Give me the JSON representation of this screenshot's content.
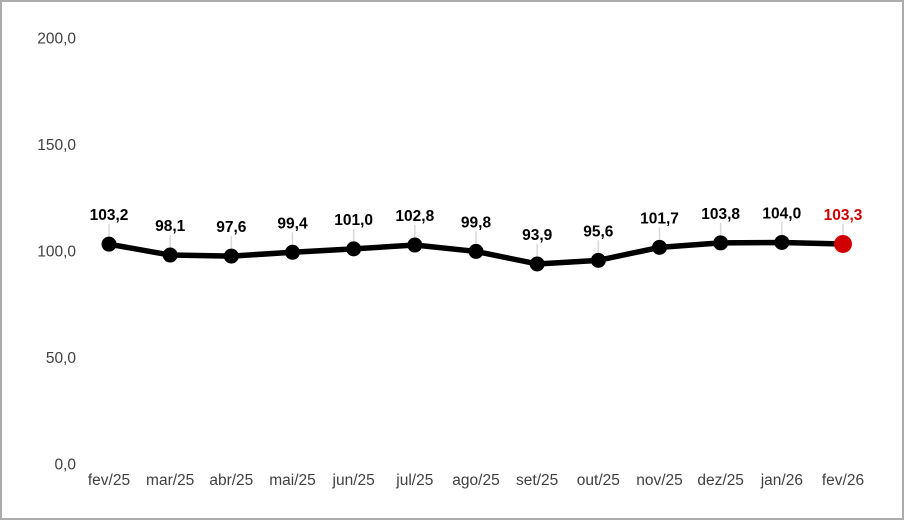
{
  "chart_data": {
    "type": "line",
    "title": "",
    "xlabel": "",
    "ylabel": "",
    "categories": [
      "fev/25",
      "mar/25",
      "abr/25",
      "mai/25",
      "jun/25",
      "jul/25",
      "ago/25",
      "set/25",
      "out/25",
      "nov/25",
      "dez/25",
      "jan/26",
      "fev/26"
    ],
    "series": [
      {
        "name": "index",
        "values": [
          103.2,
          98.1,
          97.6,
          99.4,
          101.0,
          102.8,
          99.8,
          93.9,
          95.6,
          101.7,
          103.8,
          104.0,
          103.3
        ],
        "value_labels": [
          "103,2",
          "98,1",
          "97,6",
          "99,4",
          "101,0",
          "102,8",
          "99,8",
          "93,9",
          "95,6",
          "101,7",
          "103,8",
          "104,0",
          "103,3"
        ]
      }
    ],
    "ylim": [
      0,
      200
    ],
    "y_ticks": [
      0,
      50,
      100,
      150,
      200
    ],
    "y_tick_labels": [
      "0,0",
      "50,0",
      "100,0",
      "150,0",
      "200,0"
    ],
    "grid": false,
    "legend": "none",
    "colors": {
      "line": "#000000",
      "marker": "#000000",
      "last_marker": "#d00000",
      "data_label": "#000000",
      "last_data_label": "#d00000",
      "axis_tick_label": "#404040",
      "leader_line": "#d9d9d9",
      "background": "#ffffff",
      "frame_border": "#ababab"
    }
  }
}
